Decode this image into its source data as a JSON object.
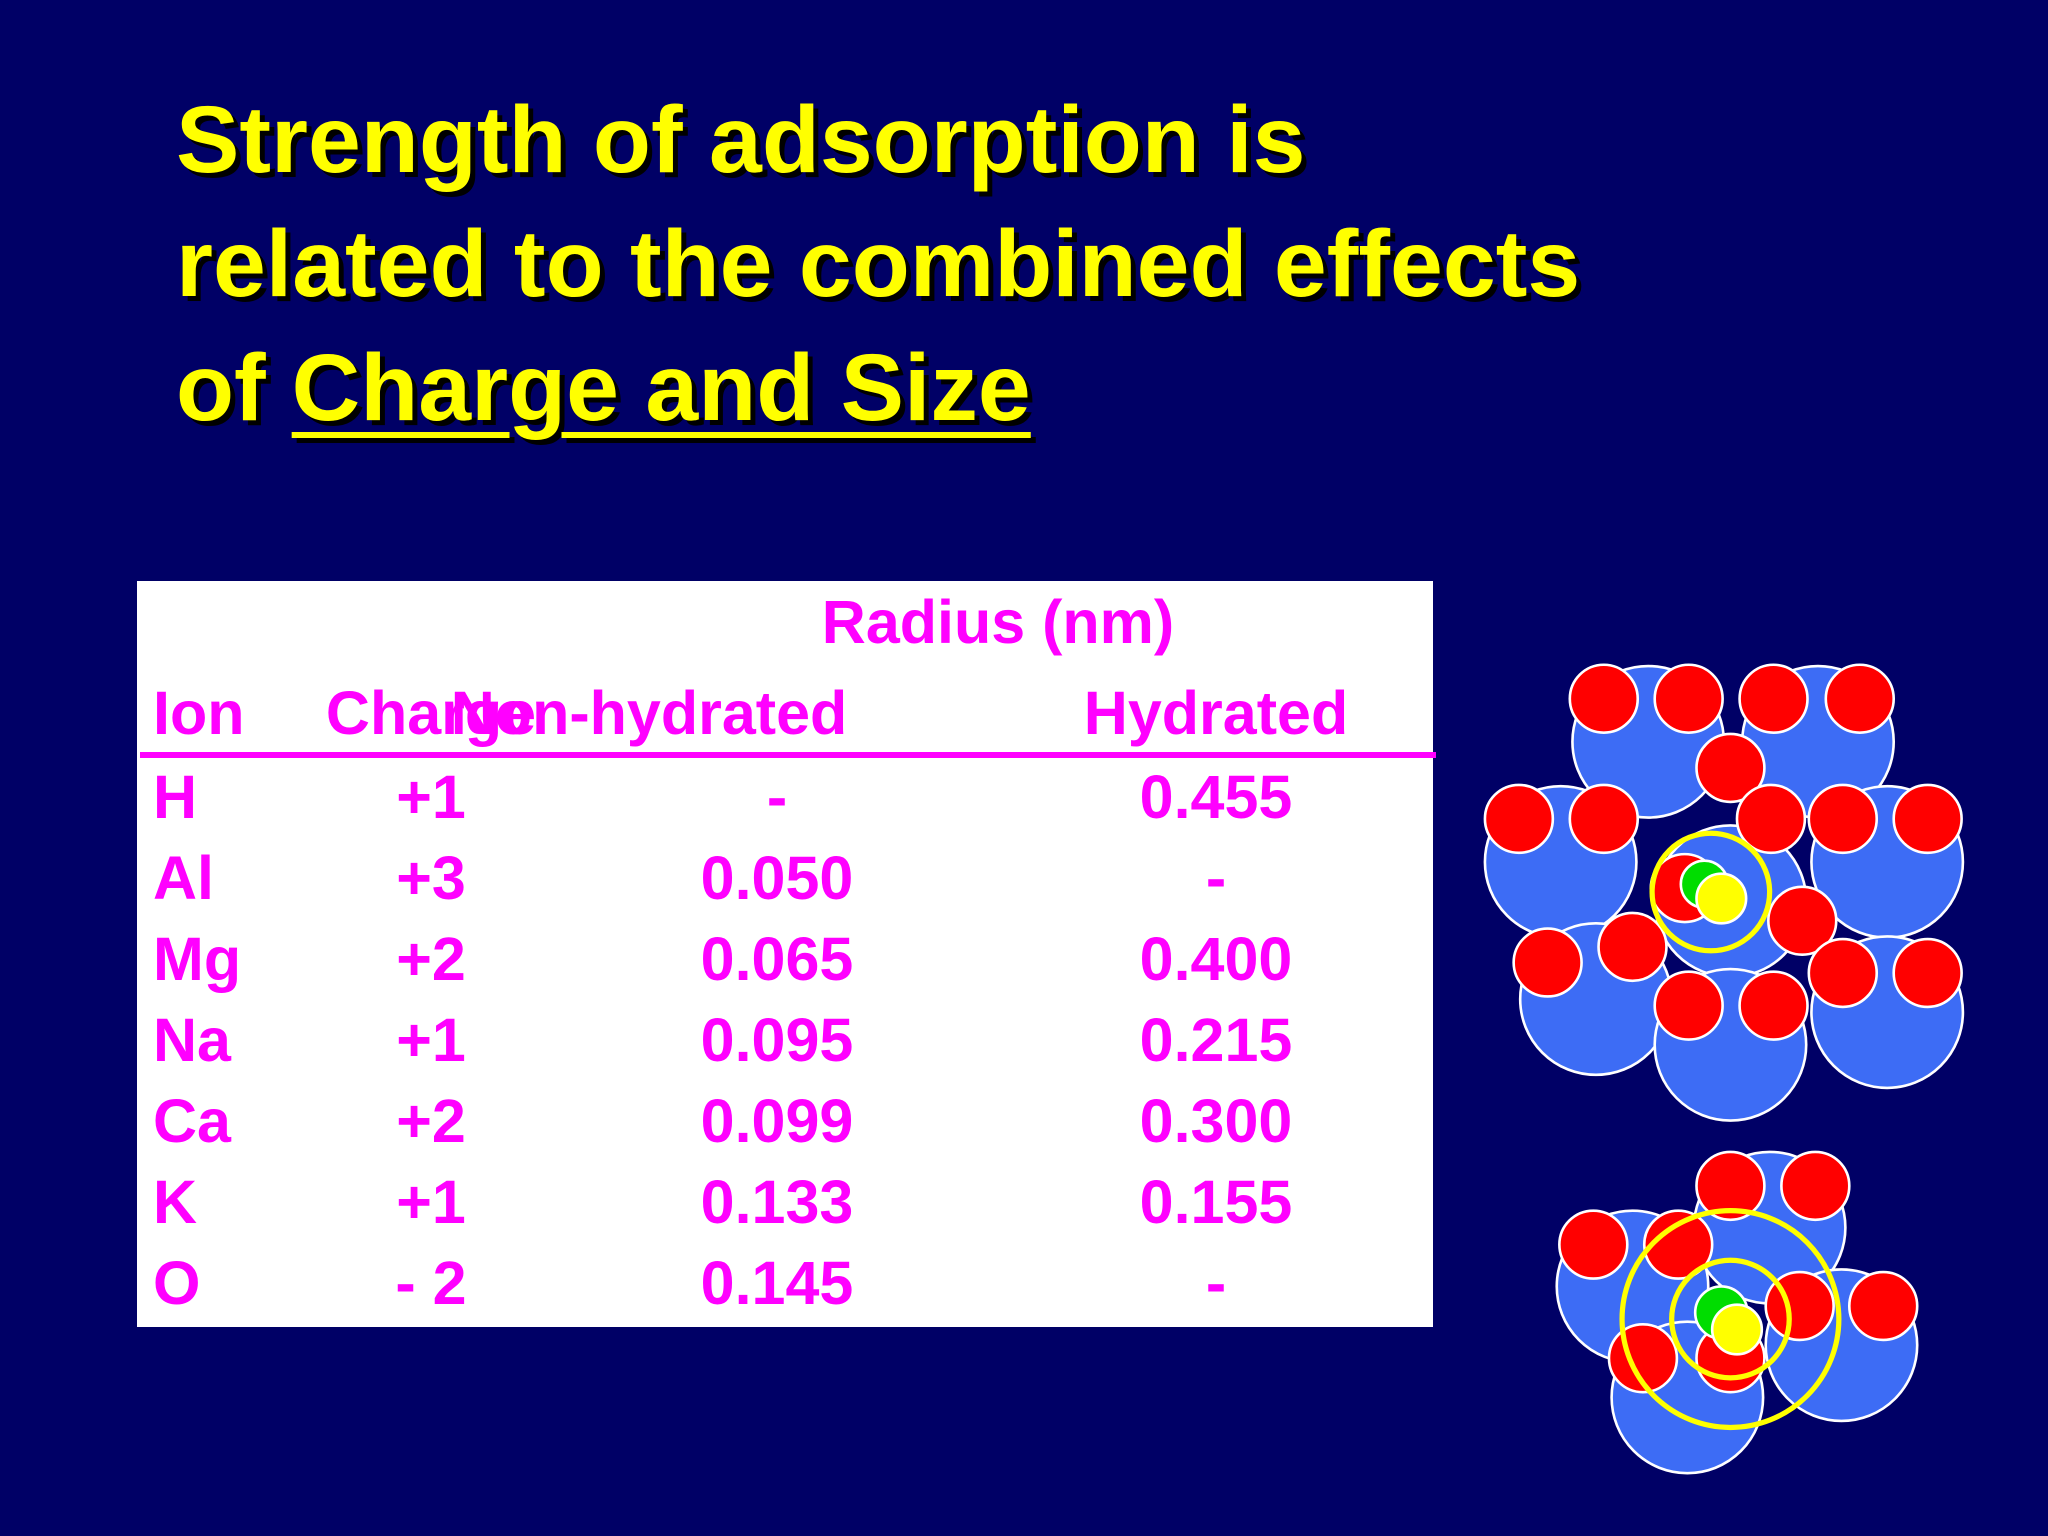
{
  "title": {
    "lines": [
      "Strength of adsorption is",
      "related to the combined effects",
      "of"
    ],
    "emphasis": "Charge and Size"
  },
  "table": {
    "group_header": "Radius (nm)",
    "headers": [
      "Ion",
      "Charge",
      "Non-hydrated",
      "Hydrated"
    ],
    "rows": [
      [
        "H",
        "+1",
        "-",
        "0.455"
      ],
      [
        "Al",
        "+3",
        "0.050",
        "-"
      ],
      [
        "Mg",
        "+2",
        "0.065",
        "0.400"
      ],
      [
        "Na",
        "+1",
        "0.095",
        "0.215"
      ],
      [
        "Ca",
        "+2",
        "0.099",
        "0.300"
      ],
      [
        "K",
        "+1",
        "0.133",
        "0.155"
      ],
      [
        "O",
        "- 2",
        "0.145",
        "-"
      ]
    ]
  }
}
